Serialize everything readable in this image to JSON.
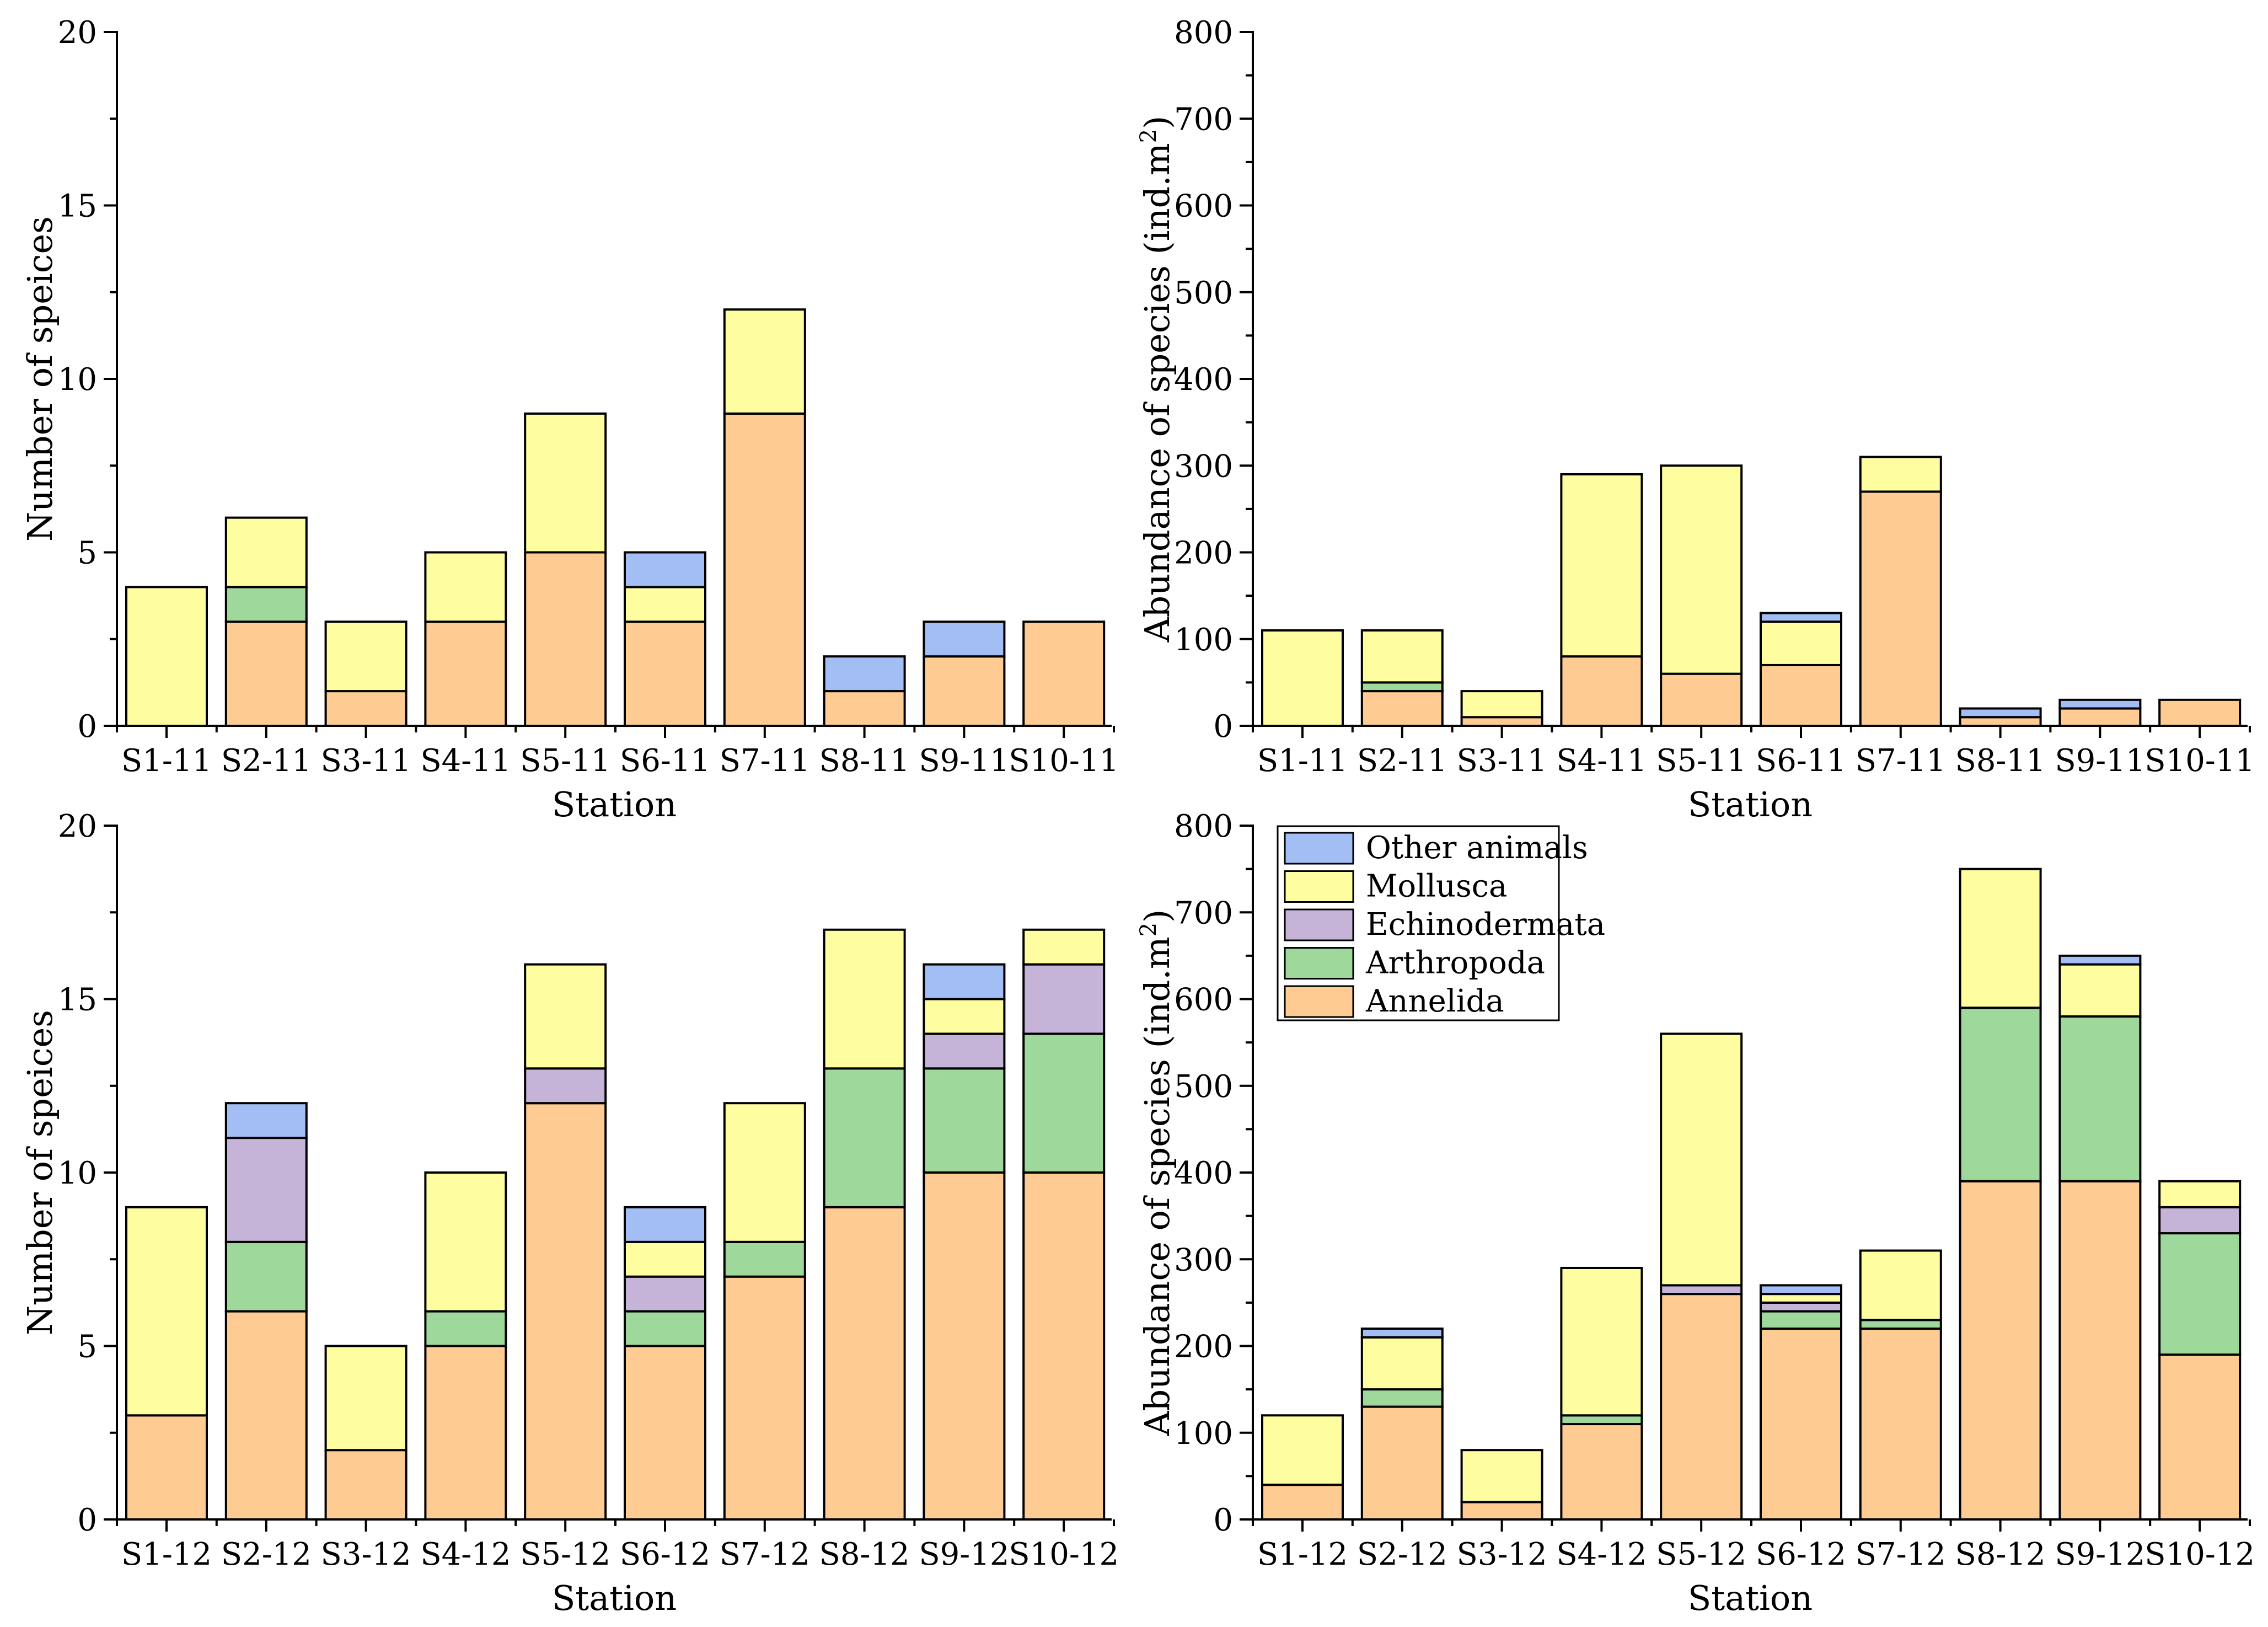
{
  "colors": {
    "Annelida": "#FECB92",
    "Arthropoda": "#9ED89A",
    "Echinodermata": "#C5B3D8",
    "Mollusca": "#FEFEA1",
    "Other animals": "#A3BEF4"
  },
  "legend": {
    "entries": [
      "Other animals",
      "Mollusca",
      "Echinodermata",
      "Arthropoda",
      "Annelida"
    ],
    "panel": 3,
    "placement": "top-left"
  },
  "chart_data": [
    {
      "type": "bar",
      "stacked": true,
      "xlabel": "Station",
      "ylabel": "Number of speices",
      "ylim": [
        0,
        20
      ],
      "yticks": [
        0,
        5,
        10,
        15,
        20
      ],
      "categories": [
        "S1-11",
        "S2-11",
        "S3-11",
        "S4-11",
        "S5-11",
        "S6-11",
        "S7-11",
        "S8-11",
        "S9-11",
        "S10-11"
      ],
      "series": [
        {
          "name": "Annelida",
          "values": [
            0,
            3,
            1,
            3,
            5,
            3,
            9,
            1,
            2,
            3
          ]
        },
        {
          "name": "Arthropoda",
          "values": [
            0,
            1,
            0,
            0,
            0,
            0,
            0,
            0,
            0,
            0
          ]
        },
        {
          "name": "Echinodermata",
          "values": [
            0,
            0,
            0,
            0,
            0,
            0,
            0,
            0,
            0,
            0
          ]
        },
        {
          "name": "Mollusca",
          "values": [
            4,
            2,
            2,
            2,
            4,
            1,
            3,
            0,
            0,
            0
          ]
        },
        {
          "name": "Other animals",
          "values": [
            0,
            0,
            0,
            0,
            0,
            1,
            0,
            1,
            1,
            0
          ]
        }
      ]
    },
    {
      "type": "bar",
      "stacked": true,
      "xlabel": "Station",
      "ylabel": "Abundance of species (ind.m",
      "ylabel_sup": "2",
      "ylabel_end": ")",
      "ylim": [
        0,
        800
      ],
      "yticks": [
        0,
        100,
        200,
        300,
        400,
        500,
        600,
        700,
        800
      ],
      "categories": [
        "S1-11",
        "S2-11",
        "S3-11",
        "S4-11",
        "S5-11",
        "S6-11",
        "S7-11",
        "S8-11",
        "S9-11",
        "S10-11"
      ],
      "series": [
        {
          "name": "Annelida",
          "values": [
            0,
            40,
            10,
            80,
            60,
            70,
            270,
            10,
            20,
            30
          ]
        },
        {
          "name": "Arthropoda",
          "values": [
            0,
            10,
            0,
            0,
            0,
            0,
            0,
            0,
            0,
            0
          ]
        },
        {
          "name": "Echinodermata",
          "values": [
            0,
            0,
            0,
            0,
            0,
            0,
            0,
            0,
            0,
            0
          ]
        },
        {
          "name": "Mollusca",
          "values": [
            110,
            60,
            30,
            210,
            240,
            50,
            40,
            0,
            0,
            0
          ]
        },
        {
          "name": "Other animals",
          "values": [
            0,
            0,
            0,
            0,
            0,
            10,
            0,
            10,
            10,
            0
          ]
        }
      ]
    },
    {
      "type": "bar",
      "stacked": true,
      "xlabel": "Station",
      "ylabel": "Number of speices",
      "ylim": [
        0,
        20
      ],
      "yticks": [
        0,
        5,
        10,
        15,
        20
      ],
      "categories": [
        "S1-12",
        "S2-12",
        "S3-12",
        "S4-12",
        "S5-12",
        "S6-12",
        "S7-12",
        "S8-12",
        "S9-12",
        "S10-12"
      ],
      "series": [
        {
          "name": "Annelida",
          "values": [
            3,
            6,
            2,
            5,
            12,
            5,
            7,
            9,
            10,
            10
          ]
        },
        {
          "name": "Arthropoda",
          "values": [
            0,
            2,
            0,
            1,
            0,
            1,
            1,
            4,
            3,
            4
          ]
        },
        {
          "name": "Echinodermata",
          "values": [
            0,
            3,
            0,
            0,
            1,
            1,
            0,
            0,
            1,
            2
          ]
        },
        {
          "name": "Mollusca",
          "values": [
            6,
            0,
            3,
            4,
            3,
            1,
            4,
            4,
            1,
            1
          ]
        },
        {
          "name": "Other animals",
          "values": [
            0,
            1,
            0,
            0,
            0,
            1,
            0,
            0,
            1,
            0
          ]
        }
      ]
    },
    {
      "type": "bar",
      "stacked": true,
      "xlabel": "Station",
      "ylabel": "Abundance of species (ind.m",
      "ylabel_sup": "2",
      "ylabel_end": ")",
      "ylim": [
        0,
        800
      ],
      "yticks": [
        0,
        100,
        200,
        300,
        400,
        500,
        600,
        700,
        800
      ],
      "categories": [
        "S1-12",
        "S2-12",
        "S3-12",
        "S4-12",
        "S5-12",
        "S6-12",
        "S7-12",
        "S8-12",
        "S9-12",
        "S10-12"
      ],
      "series": [
        {
          "name": "Annelida",
          "values": [
            40,
            130,
            20,
            110,
            260,
            220,
            220,
            390,
            390,
            190
          ]
        },
        {
          "name": "Arthropoda",
          "values": [
            0,
            20,
            0,
            10,
            0,
            20,
            10,
            200,
            190,
            140
          ]
        },
        {
          "name": "Echinodermata",
          "values": [
            0,
            0,
            0,
            0,
            10,
            10,
            0,
            0,
            0,
            30
          ]
        },
        {
          "name": "Mollusca",
          "values": [
            80,
            60,
            60,
            170,
            290,
            10,
            80,
            160,
            60,
            30
          ]
        },
        {
          "name": "Other animals",
          "values": [
            0,
            10,
            0,
            0,
            0,
            10,
            0,
            0,
            10,
            0
          ]
        }
      ]
    }
  ]
}
